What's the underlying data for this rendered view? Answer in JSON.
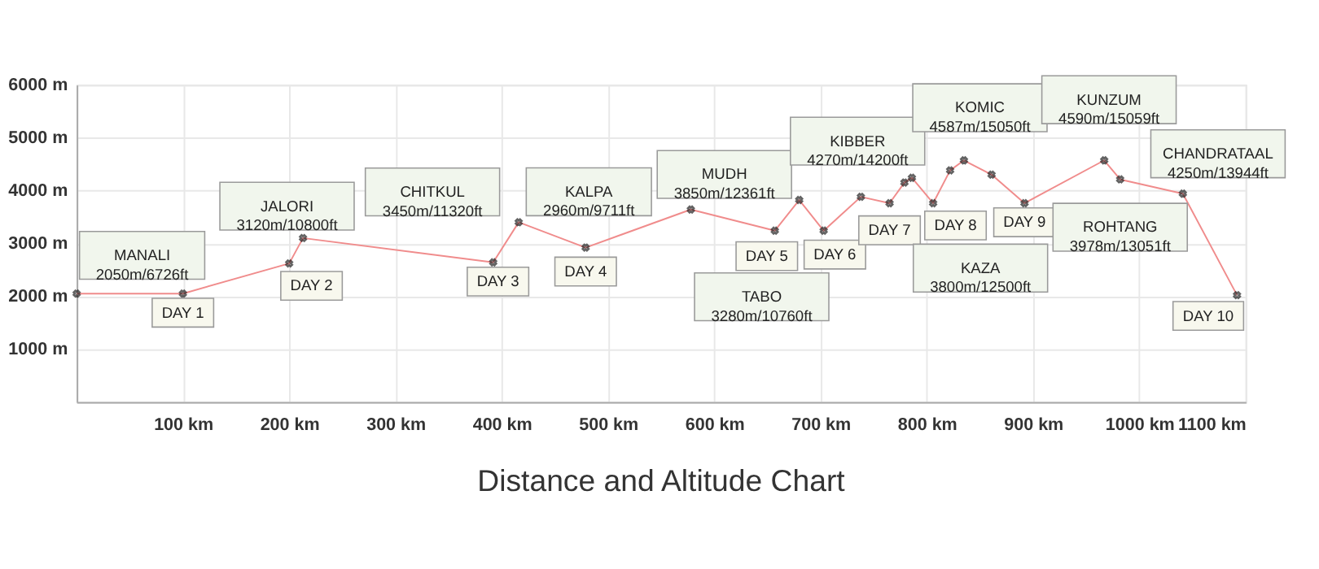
{
  "chart_data": {
    "type": "line",
    "title": "Distance and Altitude Chart",
    "marker": "cross",
    "grid": true,
    "x": [
      0,
      100,
      200,
      213,
      392,
      416,
      479,
      578,
      657,
      680,
      703,
      738,
      765,
      779,
      786,
      806,
      822,
      835,
      861,
      892,
      967,
      982,
      1041,
      1092
    ],
    "series": [
      {
        "color": "#f08c8c",
        "values": [
          2050,
          2050,
          2620,
          3100,
          2640,
          3400,
          2920,
          3640,
          3240,
          3820,
          3240,
          3880,
          3760,
          4150,
          4240,
          3760,
          4380,
          4570,
          4300,
          3760,
          4570,
          4210,
          3940,
          2020
        ]
      }
    ],
    "xlim": [
      0,
      1100
    ],
    "ylim": [
      0,
      6000
    ],
    "xticks": [
      {
        "value": 100,
        "label": "100 km"
      },
      {
        "value": 200,
        "label": "200 km"
      },
      {
        "value": 300,
        "label": "300 km"
      },
      {
        "value": 400,
        "label": "400 km"
      },
      {
        "value": 500,
        "label": "500 km"
      },
      {
        "value": 600,
        "label": "600 km"
      },
      {
        "value": 700,
        "label": "700 km"
      },
      {
        "value": 800,
        "label": "800 km"
      },
      {
        "value": 900,
        "label": "900 km"
      },
      {
        "value": 1000,
        "label": "1000 km"
      },
      {
        "value": 1100,
        "label": "1100 km"
      }
    ],
    "yticks": [
      {
        "value": 1000,
        "label": "1000 m"
      },
      {
        "value": 2000,
        "label": "2000 m"
      },
      {
        "value": 3000,
        "label": "3000 m"
      },
      {
        "value": 4000,
        "label": "4000 m"
      },
      {
        "value": 5000,
        "label": "5000 m"
      },
      {
        "value": 6000,
        "label": "6000 m"
      }
    ],
    "annotations": [
      {
        "text": "MANALI\n2050m/6726ft",
        "x": 0,
        "y": 2050
      },
      {
        "text": "DAY 1",
        "x": 100,
        "y": 2050
      },
      {
        "text": "JALORI\n3120m/10800ft",
        "x": 213,
        "y": 3100
      },
      {
        "text": "DAY 2",
        "x": 200,
        "y": 2620
      },
      {
        "text": "CHITKUL\n3450m/11320ft",
        "x": 416,
        "y": 3400
      },
      {
        "text": "DAY 3",
        "x": 392,
        "y": 2640
      },
      {
        "text": "KALPA\n2960m/9711ft",
        "x": 479,
        "y": 2920
      },
      {
        "text": "DAY 4",
        "x": 479,
        "y": 2920
      },
      {
        "text": "MUDH\n3850m/12361ft",
        "x": 578,
        "y": 3640
      },
      "TABO\n3280m/10760ft",
      {
        "text": "DAY 5",
        "x": 657,
        "y": 3240
      },
      {
        "text": "KIBBER\n4270m/14200ft",
        "x": 786,
        "y": 4240
      },
      {
        "text": "DAY 6",
        "x": 703,
        "y": 3240
      },
      {
        "text": "DAY 7",
        "x": 765,
        "y": 3760
      },
      {
        "text": "KOMIC\n4587m/15050ft",
        "x": 835,
        "y": 4570
      },
      {
        "text": "DAY 8",
        "x": 806,
        "y": 3760
      },
      "KAZA\n3800m/12500ft",
      {
        "text": "DAY 9",
        "x": 892,
        "y": 3760
      },
      {
        "text": "KUNZUM\n4590m/15059ft",
        "x": 967,
        "y": 4570
      },
      {
        "text": "ROHTANG\n3978m/13051ft",
        "x": 982,
        "y": 4210
      },
      {
        "text": "CHANDRATAAL\n4250m/13944ft",
        "x": 1041,
        "y": 3940
      },
      {
        "text": "DAY 10",
        "x": 1092,
        "y": 2020
      }
    ]
  }
}
